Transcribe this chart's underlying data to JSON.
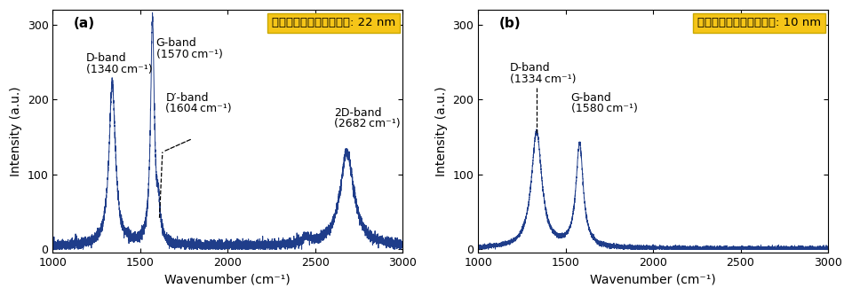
{
  "line_color": "#1f3d8a",
  "line_width": 0.7,
  "background_color": "#ffffff",
  "xlim": [
    1000,
    3000
  ],
  "ylim": [
    -5,
    320
  ],
  "yticks": [
    0,
    100,
    200,
    300
  ],
  "xticks": [
    1000,
    1500,
    2000,
    2500,
    3000
  ],
  "xlabel": "Wavenumber (cm⁻¹)",
  "ylabel": "Intensity (a.u.)",
  "panel_a": {
    "label": "(a)",
    "box_text": "グラファイト結晶サイズ: 22 nm",
    "noise_level": 3.5,
    "baseline": 4
  },
  "panel_b": {
    "label": "(b)",
    "box_text": "グラファイト結晶サイズ: 10 nm",
    "noise_level": 1.5,
    "baseline": 1
  },
  "box_facecolor": "#f5c518",
  "box_edgecolor": "#c8a800",
  "font_size_label": 10,
  "font_size_tick": 9,
  "font_size_annot": 9,
  "font_size_box": 9.5,
  "font_size_panel": 11
}
